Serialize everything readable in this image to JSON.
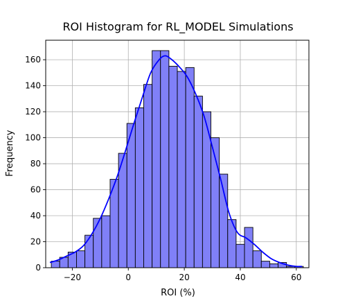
{
  "chart_data": {
    "type": "histogram",
    "title": "ROI Histogram for RL_MODEL Simulations",
    "xlabel": "ROI (%)",
    "ylabel": "Frequency",
    "xlim": [
      -29.5,
      64.5
    ],
    "ylim": [
      0,
      175
    ],
    "xticks": [
      -20,
      0,
      20,
      40,
      60
    ],
    "yticks": [
      0,
      20,
      40,
      60,
      80,
      100,
      120,
      140,
      160
    ],
    "grid": true,
    "legend": "none",
    "bins": {
      "start": -27.5,
      "width": 3.0,
      "counts": [
        5,
        8,
        12,
        13,
        25,
        38,
        40,
        68,
        88,
        111,
        123,
        141,
        167,
        167,
        155,
        151,
        154,
        132,
        120,
        100,
        72,
        37,
        18,
        31,
        13,
        5,
        3,
        4,
        1,
        1
      ]
    },
    "kde": {
      "x": [
        -28,
        -25,
        -22,
        -19,
        -16,
        -13,
        -10,
        -7,
        -4,
        -1,
        2,
        5,
        8,
        11,
        13,
        15,
        18,
        21,
        24,
        27,
        30,
        33,
        36,
        39,
        42,
        45,
        48,
        51,
        54,
        57,
        60,
        62
      ],
      "y": [
        4,
        6,
        9,
        12,
        17,
        26,
        38,
        53,
        70,
        90,
        111,
        131,
        150,
        160,
        163,
        161,
        155,
        147,
        134,
        117,
        93,
        68,
        42,
        27,
        23,
        18,
        12,
        7,
        4,
        2,
        1,
        1
      ]
    },
    "colors": {
      "bar_fill": "#8080f7",
      "bar_edge": "#000000",
      "kde_line": "#0000ff",
      "grid": "#b0b0b0"
    }
  }
}
